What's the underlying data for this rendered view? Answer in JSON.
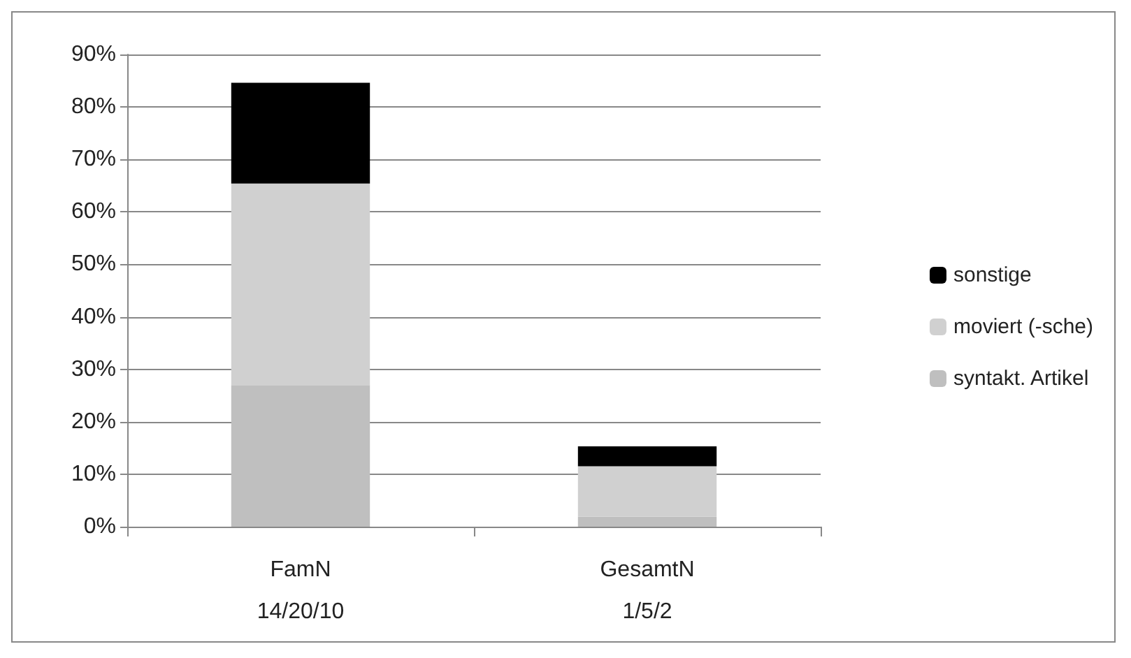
{
  "chart_data": {
    "type": "bar",
    "stacked": true,
    "categories": [
      "FamN\n14/20/10",
      "GesamtN\n1/5/2"
    ],
    "series": [
      {
        "name": "syntakt. Artikel",
        "color": "#bfbfbf",
        "values": [
          26.9,
          1.9
        ]
      },
      {
        "name": "moviert (-sche)",
        "color": "#d0d0d0",
        "values": [
          38.5,
          9.6
        ]
      },
      {
        "name": "sonstige",
        "color": "#000000",
        "values": [
          19.2,
          3.8
        ]
      }
    ],
    "ylim": [
      0,
      90
    ],
    "yticks": [
      {
        "value": 0,
        "label": "0%"
      },
      {
        "value": 10,
        "label": "10%"
      },
      {
        "value": 20,
        "label": "20%"
      },
      {
        "value": 30,
        "label": "30%"
      },
      {
        "value": 40,
        "label": "40%"
      },
      {
        "value": 50,
        "label": "50%"
      },
      {
        "value": 60,
        "label": "60%"
      },
      {
        "value": 70,
        "label": "70%"
      },
      {
        "value": 80,
        "label": "80%"
      },
      {
        "value": 90,
        "label": "90%"
      }
    ],
    "grid": "y",
    "legend": "right"
  }
}
